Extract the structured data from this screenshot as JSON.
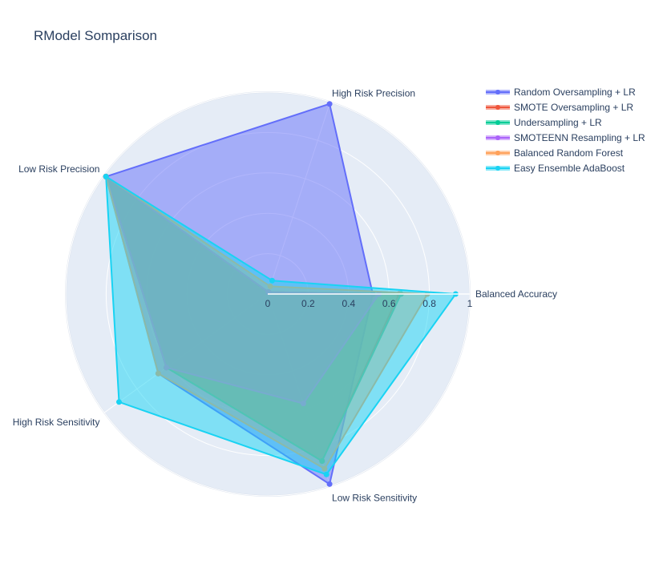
{
  "chart_data": {
    "type": "radar",
    "title": "RModel Somparison",
    "axes": [
      "Balanced Accuracy",
      "High Risk Precision",
      "Low Risk Precision",
      "High Risk Sensitivity",
      "Low Risk Sensitivity"
    ],
    "radial_range": [
      0,
      1
    ],
    "radial_ticks": [
      "0",
      "0.2",
      "0.4",
      "0.6",
      "0.8",
      "1"
    ],
    "legend_position": "top-right",
    "grid": true,
    "series": [
      {
        "name": "Random Oversampling + LR",
        "color": "#636efa",
        "values": [
          0.52,
          0.99,
          0.99,
          0.67,
          0.99
        ]
      },
      {
        "name": "SMOTE Oversampling + LR",
        "color": "#ef553b",
        "values": [
          0.65,
          0.01,
          0.99,
          0.62,
          0.87
        ]
      },
      {
        "name": "Undersampling + LR",
        "color": "#00cc96",
        "values": [
          0.66,
          0.01,
          0.99,
          0.62,
          0.87
        ]
      },
      {
        "name": "SMOTEENN Resampling + LR",
        "color": "#ab63fa",
        "values": [
          0.55,
          0.01,
          0.99,
          0.62,
          0.57
        ]
      },
      {
        "name": "Balanced Random Forest",
        "color": "#ffa15a",
        "values": [
          0.79,
          0.04,
          0.99,
          0.67,
          0.91
        ]
      },
      {
        "name": "Easy Ensemble AdaBoost",
        "color": "#19d3f3",
        "values": [
          0.93,
          0.07,
          0.99,
          0.91,
          0.94
        ]
      }
    ]
  }
}
